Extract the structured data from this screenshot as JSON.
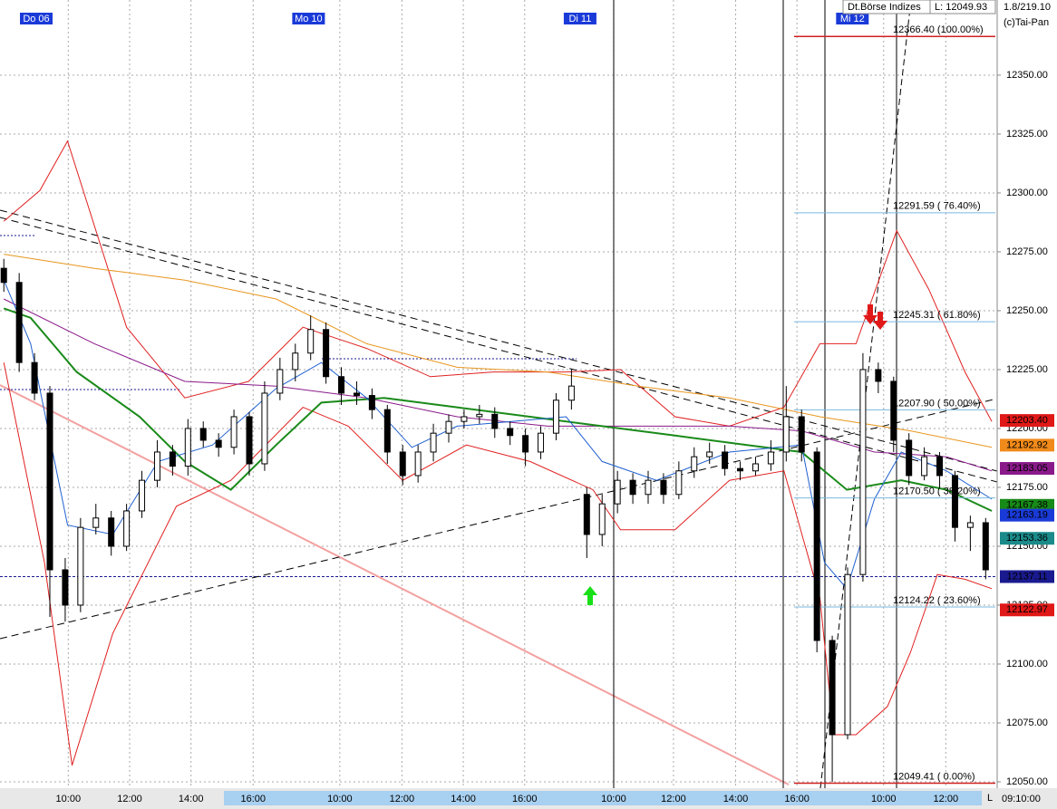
{
  "header": {
    "source": "Dt.Börse Indizes",
    "last": "L: 12049.93",
    "version": "1.8/219.10",
    "copyright": "(c)Tai-Pan",
    "time": "09:10:00",
    "corner": "L"
  },
  "chart_data": {
    "type": "candlestick",
    "up_color": "#ffffff",
    "down_color": "#000000",
    "xlim": [
      -0.5,
      129.5
    ],
    "ylim": [
      12047.3,
      12381.9
    ],
    "grid": true,
    "day_labels": [
      {
        "value": 2.1,
        "label": "Do 06"
      },
      {
        "value": 37.6,
        "label": "Mo 10"
      },
      {
        "value": 73.0,
        "label": "Di 11"
      },
      {
        "value": 108.5,
        "label": "Mi 12"
      }
    ],
    "xticks": [
      {
        "value": 8.4,
        "label": "10:00"
      },
      {
        "value": 16.4,
        "label": "12:00"
      },
      {
        "value": 24.4,
        "label": "14:00"
      },
      {
        "value": 32.5,
        "label": "16:00"
      },
      {
        "value": 43.8,
        "label": "10:00"
      },
      {
        "value": 51.9,
        "label": "12:00"
      },
      {
        "value": 59.9,
        "label": "14:00"
      },
      {
        "value": 67.9,
        "label": "16:00"
      },
      {
        "value": 79.5,
        "label": "10:00"
      },
      {
        "value": 87.3,
        "label": "12:00"
      },
      {
        "value": 95.4,
        "label": "14:00"
      },
      {
        "value": 103.4,
        "label": "16:00"
      },
      {
        "value": 114.7,
        "label": "10:00"
      },
      {
        "value": 122.8,
        "label": "12:00"
      }
    ],
    "yticks": [
      {
        "value": 12050,
        "label": "12050.00"
      },
      {
        "value": 12075,
        "label": "12075.00"
      },
      {
        "value": 12100,
        "label": "12100.00"
      },
      {
        "value": 12125,
        "label": "12125.00"
      },
      {
        "value": 12150,
        "label": "12150.00"
      },
      {
        "value": 12175,
        "label": "12175.00"
      },
      {
        "value": 12200,
        "label": "12200.00"
      },
      {
        "value": 12225,
        "label": "12225.00"
      },
      {
        "value": 12250,
        "label": "12250.00"
      },
      {
        "value": 12275,
        "label": "12275.00"
      },
      {
        "value": 12300,
        "label": "12300.00"
      },
      {
        "value": 12325,
        "label": "12325.00"
      },
      {
        "value": 12350,
        "label": "12350.00"
      }
    ],
    "x": [
      0,
      2,
      4,
      6,
      8,
      10,
      12,
      14,
      16,
      18,
      20,
      22,
      24,
      26,
      28,
      30,
      32,
      34,
      36,
      38,
      40,
      42,
      44,
      46,
      48,
      50,
      52,
      54,
      56,
      58,
      60,
      62,
      64,
      66,
      68,
      70,
      72,
      74,
      76,
      78,
      80,
      82,
      84,
      86,
      88,
      90,
      92,
      94,
      96,
      98,
      100,
      102,
      104,
      106,
      108,
      110,
      112,
      114,
      116,
      118,
      120,
      122,
      124,
      126,
      128
    ],
    "open": [
      12268,
      12262,
      12228,
      12215,
      12140,
      12125,
      12158,
      12162,
      12150,
      12165,
      12178,
      12190,
      12184,
      12200,
      12195,
      12192,
      12205,
      12185,
      12215,
      12225,
      12232,
      12242,
      12222,
      12215,
      12214,
      12208,
      12190,
      12180,
      12190,
      12198,
      12203,
      12205,
      12206,
      12200,
      12197,
      12190,
      12198,
      12212,
      12172,
      12155,
      12168,
      12178,
      12172,
      12178,
      12172,
      12182,
      12188,
      12190,
      12183,
      12182,
      12185,
      12190,
      12205,
      12190,
      12110,
      12070,
      12138,
      12225,
      12220,
      12195,
      12180,
      12188,
      12180,
      12158,
      12160
    ],
    "high": [
      12272,
      12266,
      12232,
      12218,
      12145,
      12162,
      12168,
      12165,
      12168,
      12182,
      12195,
      12193,
      12204,
      12203,
      12198,
      12208,
      12207,
      12220,
      12230,
      12236,
      12248,
      12245,
      12226,
      12220,
      12217,
      12210,
      12193,
      12193,
      12202,
      12206,
      12208,
      12210,
      12209,
      12203,
      12200,
      12201,
      12215,
      12225,
      12175,
      12172,
      12182,
      12181,
      12182,
      12181,
      12186,
      12192,
      12194,
      12193,
      12186,
      12188,
      12195,
      12218,
      12208,
      12192,
      12112,
      12141,
      12232,
      12228,
      12222,
      12198,
      12192,
      12190,
      12182,
      12163,
      12162
    ],
    "low": [
      12258,
      12224,
      12212,
      12120,
      12118,
      12122,
      12155,
      12146,
      12148,
      12162,
      12175,
      12180,
      12180,
      12192,
      12188,
      12189,
      12180,
      12182,
      12212,
      12220,
      12229,
      12219,
      12210,
      12210,
      12204,
      12185,
      12176,
      12177,
      12186,
      12194,
      12200,
      12202,
      12196,
      12193,
      12184,
      12187,
      12195,
      12208,
      12145,
      12150,
      12164,
      12168,
      12168,
      12168,
      12170,
      12179,
      12185,
      12180,
      12178,
      12180,
      12182,
      12186,
      12186,
      12105,
      12050,
      12068,
      12135,
      12215,
      12190,
      12176,
      12178,
      12175,
      12152,
      12148,
      12136
    ],
    "close": [
      12262,
      12228,
      12215,
      12140,
      12125,
      12158,
      12162,
      12150,
      12165,
      12178,
      12190,
      12184,
      12200,
      12195,
      12192,
      12205,
      12185,
      12215,
      12225,
      12232,
      12242,
      12222,
      12215,
      12214,
      12208,
      12190,
      12180,
      12190,
      12198,
      12203,
      12205,
      12206,
      12200,
      12197,
      12190,
      12198,
      12212,
      12218,
      12155,
      12168,
      12178,
      12172,
      12178,
      12172,
      12182,
      12188,
      12190,
      12183,
      12182,
      12185,
      12190,
      12205,
      12190,
      12110,
      12070,
      12138,
      12225,
      12220,
      12195,
      12180,
      12188,
      12180,
      12158,
      12160,
      12140
    ],
    "overlays": [
      {
        "color": "#e02020",
        "x": [
          0,
          4.7,
          8.3,
          16,
          23.6,
          31.9,
          39,
          47.3,
          55.6,
          63.8,
          73.3,
          80.4,
          87.5,
          94.6,
          101.7,
          106.4,
          111.1,
          116.4,
          120.6,
          125.3,
          128.8
        ],
        "values": [
          12288,
          12301,
          12322,
          12243,
          12213,
          12220,
          12243,
          12234,
          12222,
          12224,
          12224,
          12225,
          12205,
          12201,
          12209,
          12236,
          12236,
          12284,
          12259,
          12224,
          12203
        ]
      },
      {
        "color": "#e02020",
        "x": [
          0,
          5.3,
          8.9,
          14.2,
          22.5,
          29.6,
          39,
          44.9,
          52,
          60.3,
          68.6,
          76.8,
          80.4,
          87.5,
          94.6,
          101.7,
          106.4,
          108.2,
          111.1,
          115.2,
          118.2,
          121.7,
          125.3,
          128.8
        ],
        "values": [
          12228,
          12143,
          12057,
          12113,
          12167,
          12178,
          12209,
          12201,
          12178,
          12193,
          12186,
          12174,
          12157,
          12157,
          12178,
          12182,
          12128,
          12070,
          12070,
          12082,
          12105,
          12138,
          12136,
          12132
        ]
      },
      {
        "color": "#e8961e",
        "x": [
          0,
          11.8,
          23.6,
          35.5,
          47.3,
          59.1,
          70.9,
          82.7,
          94.6,
          106.4,
          118.2,
          128.8
        ],
        "values": [
          12274,
          12268,
          12263,
          12255,
          12236,
          12226,
          12224,
          12218,
          12213,
          12205,
          12199,
          12192
        ]
      },
      {
        "color": "#8a1a8a",
        "x": [
          0,
          11.8,
          23.6,
          35.5,
          47.3,
          59.1,
          70.9,
          82.7,
          94.6,
          104,
          113.5,
          122.9,
          128.8
        ],
        "values": [
          12255,
          12236,
          12220,
          12218,
          12213,
          12205,
          12201,
          12201,
          12201,
          12199,
          12190,
          12188,
          12182
        ]
      },
      {
        "color": "#1a8a1a",
        "x": [
          0,
          3.5,
          9.5,
          17.7,
          23.6,
          29.6,
          35.5,
          41.4,
          49.6,
          59.1,
          68.6,
          78,
          87.5,
          96.9,
          104,
          109.9,
          117,
          122.9,
          128.8
        ],
        "values": [
          12251,
          12247,
          12224,
          12205,
          12186,
          12174,
          12193,
          12211,
          12213,
          12209,
          12205,
          12201,
          12197,
          12193,
          12190,
          12174,
          12178,
          12174,
          12165
        ]
      },
      {
        "color": "#2060d0",
        "x": [
          0,
          3.5,
          8.3,
          14.2,
          20.1,
          27.2,
          35.5,
          41.4,
          47.3,
          53.2,
          59.1,
          66.2,
          73.3,
          78,
          85.1,
          94.6,
          104,
          107,
          109.9,
          113.5,
          117,
          122.9,
          128.8
        ],
        "values": [
          12263,
          12236,
          12159,
          12155,
          12186,
          12193,
          12217,
          12228,
          12213,
          12192,
          12201,
          12203,
          12205,
          12186,
          12178,
          12190,
          12193,
          12143,
          12132,
          12170,
          12190,
          12182,
          12170
        ]
      }
    ],
    "fib_levels": [
      {
        "value": 12366.4,
        "label": "12366.40 (100.00%)",
        "color": "#d02020"
      },
      {
        "value": 12291.59,
        "label": "12291.59 ( 76.40%)",
        "color": "#7ab8e0"
      },
      {
        "value": 12245.31,
        "label": "12245.31 ( 61.80%)",
        "color": "#7ab8e0"
      },
      {
        "value": 12207.9,
        "label": "12207.90 ( 50.00%)",
        "color": "#7ab8e0"
      },
      {
        "value": 12170.5,
        "label": "12170.50 ( 38.20%)",
        "color": "#7ab8e0"
      },
      {
        "value": 12124.22,
        "label": "12124.22 ( 23.60%)",
        "color": "#7ab8e0"
      },
      {
        "value": 12049.41,
        "label": "12049.41 ( 0.00%)",
        "color": "#d02020"
      }
    ],
    "price_labels": [
      {
        "value": 12203.4,
        "label": "12203.40",
        "color": "#e01818"
      },
      {
        "value": 12192.92,
        "label": "12192.92",
        "color": "#f08a1a"
      },
      {
        "value": 12183.05,
        "label": "12183.05",
        "color": "#8a1a8a"
      },
      {
        "value": 12167.38,
        "label": "12167.38",
        "color": "#188a18"
      },
      {
        "value": 12163.19,
        "label": "12163.19",
        "color": "#1a3ad8"
      },
      {
        "value": 12153.36,
        "label": "12153.36",
        "color": "#1a8a8a"
      },
      {
        "value": 12137.11,
        "label": "12137.11",
        "color": "#1a1a90"
      },
      {
        "value": 12122.97,
        "label": "12122.97",
        "color": "#e01818"
      }
    ]
  }
}
